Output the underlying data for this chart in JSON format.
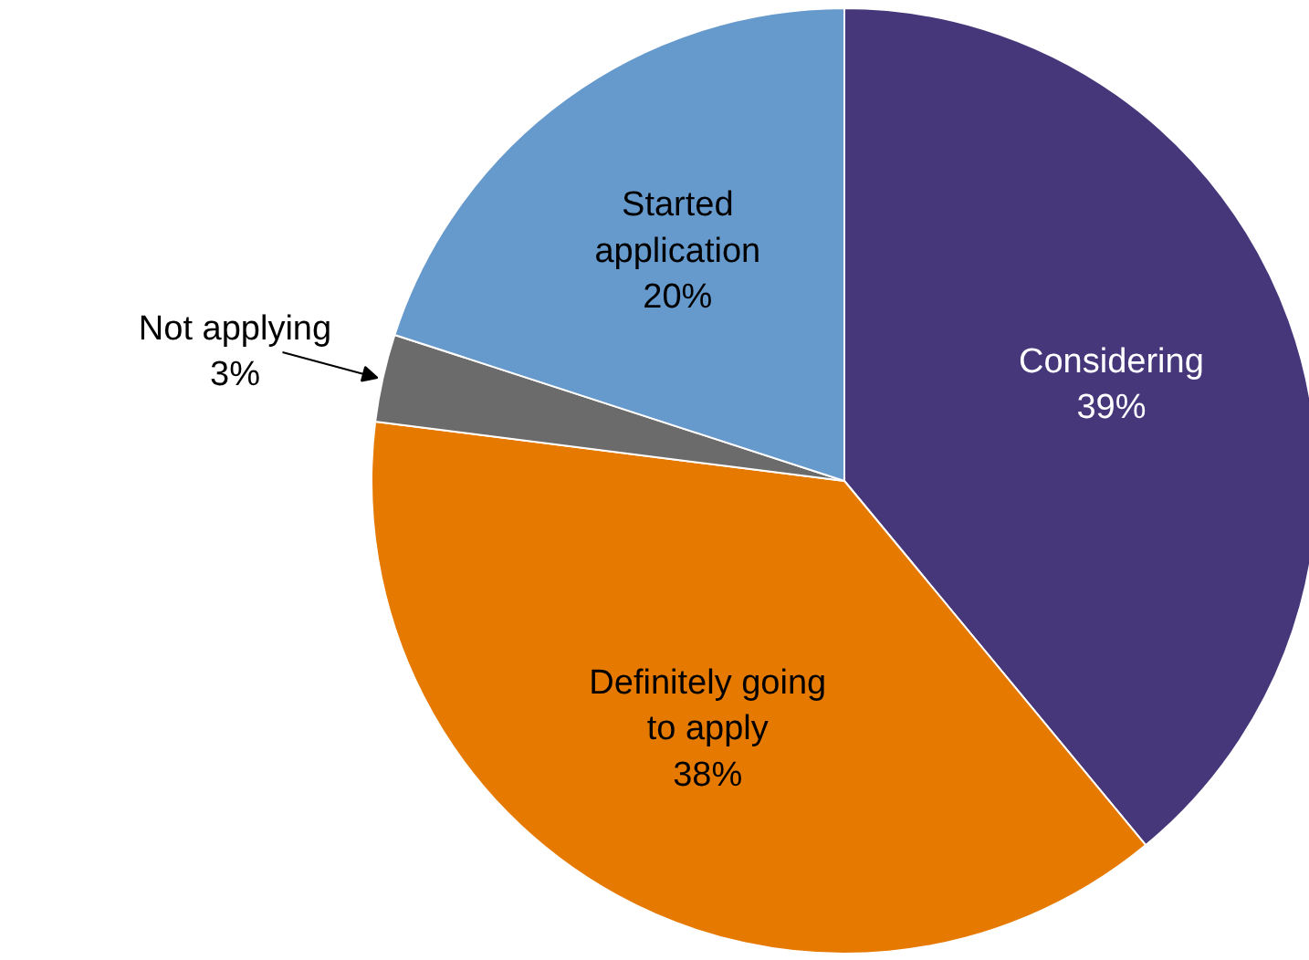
{
  "chart_data": {
    "type": "pie",
    "categories": [
      "Considering",
      "Definitely going to apply",
      "Not applying",
      "Started application"
    ],
    "values": [
      39,
      38,
      3,
      20
    ],
    "colors": [
      "#45377a",
      "#e67a00",
      "#6b6b6b",
      "#6699cc"
    ],
    "value_labels": [
      "39%",
      "38%",
      "3%",
      "20%"
    ]
  }
}
